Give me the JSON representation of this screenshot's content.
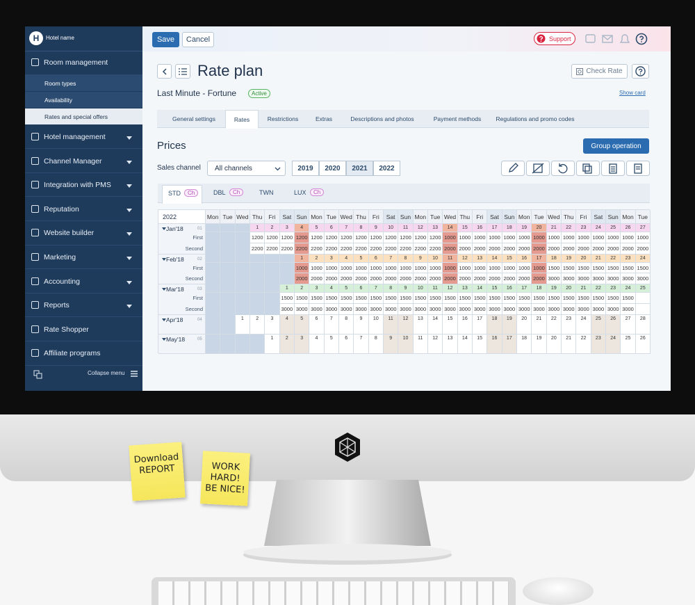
{
  "sidebar": {
    "avatar": "H",
    "hotel_name": "Hotel name",
    "collapse": "Collapse menu",
    "menu": [
      {
        "label": "Room management",
        "children": [
          {
            "label": "Room types"
          },
          {
            "label": "Availability"
          },
          {
            "label": "Rates and special offers",
            "active": true
          }
        ]
      },
      {
        "label": "Hotel management",
        "dropdown": true
      },
      {
        "label": "Channel Manager",
        "dropdown": true
      },
      {
        "label": "Integration with PMS",
        "dropdown": true
      },
      {
        "label": "Reputation",
        "dropdown": true
      },
      {
        "label": "Website builder",
        "dropdown": true
      },
      {
        "label": "Marketing",
        "dropdown": true
      },
      {
        "label": "Accounting",
        "dropdown": true
      },
      {
        "label": "Reports",
        "dropdown": true
      },
      {
        "label": "Rate Shopper"
      },
      {
        "label": "Affiliate programs"
      }
    ]
  },
  "toolbar": {
    "save": "Save",
    "cancel": "Cancel",
    "support": "Support"
  },
  "header": {
    "title": "Rate plan",
    "plan": "Last Minute - Fortune",
    "status": "Active",
    "check_rate": "Check Rate",
    "show_card": "Show card"
  },
  "tabs": [
    {
      "label": "General settings"
    },
    {
      "label": "Rates",
      "active": true
    },
    {
      "label": "Restrictions"
    },
    {
      "label": "Extras"
    },
    {
      "label": "Descriptions and photos"
    },
    {
      "label": "Payment methods"
    },
    {
      "label": "Regulations and promo codes"
    }
  ],
  "prices": {
    "title": "Prices",
    "group_operation": "Group operation",
    "sales_channel": "Sales channel",
    "channel": "All channels",
    "years": [
      {
        "label": "2019"
      },
      {
        "label": "2020"
      },
      {
        "label": "2021",
        "active": true
      },
      {
        "label": "2022"
      }
    ]
  },
  "room_tabs": [
    {
      "name": "STD",
      "badge": "Ch",
      "active": true
    },
    {
      "name": "DBL",
      "badge": "Ch"
    },
    {
      "name": "TWN"
    },
    {
      "name": "LUX",
      "badge": "Ch"
    }
  ],
  "calendar": {
    "year": "2022",
    "weekdays": [
      "Mon",
      "Tue",
      "Wed",
      "Thu",
      "Fri",
      "Sat",
      "Sun",
      "Mon",
      "Tue",
      "Wed",
      "Thu",
      "Fri",
      "Sat",
      "Sun",
      "Mon",
      "Tue",
      "Wed",
      "Thu",
      "Fri",
      "Sat",
      "Sun",
      "Mon",
      "Tue",
      "Wed",
      "Thu",
      "Fri",
      "Sat",
      "Sun",
      "Mon",
      "Tue"
    ],
    "rate_names": [
      "First",
      "Second"
    ],
    "months": [
      {
        "label": "Jan'18",
        "code": "01",
        "days": [
          null,
          null,
          null,
          1,
          2,
          3,
          4,
          5,
          6,
          7,
          8,
          9,
          10,
          11,
          12,
          13,
          14,
          15,
          16,
          17,
          18,
          19,
          20,
          21,
          22,
          23,
          24,
          25,
          26,
          27
        ],
        "values": [
          [
            null,
            null,
            null,
            1200,
            1200,
            1200,
            1200,
            1200,
            1200,
            1200,
            1200,
            1200,
            1200,
            1200,
            1200,
            1200,
            1000,
            1000,
            1000,
            1000,
            1000,
            1000,
            1000,
            1000,
            1000,
            1000,
            1000,
            1000,
            1000,
            1000
          ],
          [
            null,
            null,
            null,
            2200,
            2200,
            2200,
            2200,
            2200,
            2200,
            2200,
            2200,
            2200,
            2200,
            2200,
            2200,
            2200,
            2000,
            2000,
            2000,
            2000,
            2000,
            2000,
            2000,
            2000,
            2000,
            2000,
            2000,
            2000,
            2000,
            2000
          ]
        ]
      },
      {
        "label": "Feb'18",
        "code": "02",
        "days": [
          null,
          null,
          null,
          null,
          null,
          null,
          1,
          2,
          3,
          4,
          5,
          6,
          7,
          8,
          9,
          10,
          11,
          12,
          13,
          14,
          15,
          16,
          17,
          18,
          19,
          20,
          21,
          22,
          23,
          24
        ],
        "values": [
          [
            null,
            null,
            null,
            null,
            null,
            null,
            1000,
            1000,
            1000,
            1000,
            1000,
            1000,
            1000,
            1000,
            1000,
            1000,
            1000,
            1000,
            1000,
            1000,
            1000,
            1000,
            1000,
            1500,
            1500,
            1500,
            1500,
            1500,
            1500,
            1500
          ],
          [
            null,
            null,
            null,
            null,
            null,
            null,
            2000,
            2000,
            2000,
            2000,
            2000,
            2000,
            2000,
            2000,
            2000,
            2000,
            2000,
            2000,
            2000,
            2000,
            2000,
            2000,
            2000,
            3000,
            3000,
            3000,
            3000,
            3000,
            3000,
            3000
          ]
        ]
      },
      {
        "label": "Mar'18",
        "code": "03",
        "days": [
          null,
          null,
          null,
          null,
          null,
          1,
          2,
          3,
          4,
          5,
          6,
          7,
          8,
          9,
          10,
          11,
          12,
          13,
          14,
          15,
          16,
          17,
          18,
          19,
          20,
          21,
          22,
          23,
          24,
          25
        ],
        "values": [
          [
            null,
            null,
            null,
            null,
            null,
            1500,
            1500,
            1500,
            1500,
            1500,
            1500,
            1500,
            1500,
            1500,
            1500,
            1500,
            1500,
            1500,
            1500,
            1500,
            1500,
            1500,
            1500,
            1500,
            1500,
            1500,
            1500,
            1500,
            1500,
            null
          ],
          [
            null,
            null,
            null,
            null,
            null,
            3000,
            3000,
            3000,
            3000,
            3000,
            3000,
            3000,
            3000,
            3000,
            3000,
            3000,
            3000,
            3000,
            3000,
            3000,
            3000,
            3000,
            3000,
            3000,
            3000,
            3000,
            3000,
            3000,
            3000,
            null
          ]
        ]
      },
      {
        "label": "Apr'18",
        "code": "04",
        "days": [
          null,
          null,
          1,
          2,
          3,
          4,
          5,
          6,
          7,
          8,
          9,
          10,
          11,
          12,
          13,
          14,
          15,
          16,
          17,
          18,
          19,
          20,
          21,
          22,
          23,
          24,
          25,
          26,
          27,
          28
        ]
      },
      {
        "label": "May'18",
        "code": "05",
        "days": [
          null,
          null,
          null,
          null,
          1,
          2,
          3,
          4,
          5,
          6,
          7,
          8,
          9,
          10,
          11,
          12,
          13,
          14,
          15,
          16,
          17,
          18,
          19,
          20,
          21,
          22,
          23,
          24,
          25,
          26
        ]
      }
    ]
  },
  "notes": [
    {
      "lines": [
        "Download",
        "REPORT"
      ]
    },
    {
      "lines": [
        "WORK",
        "HARD!",
        "BE NICE!"
      ]
    }
  ]
}
